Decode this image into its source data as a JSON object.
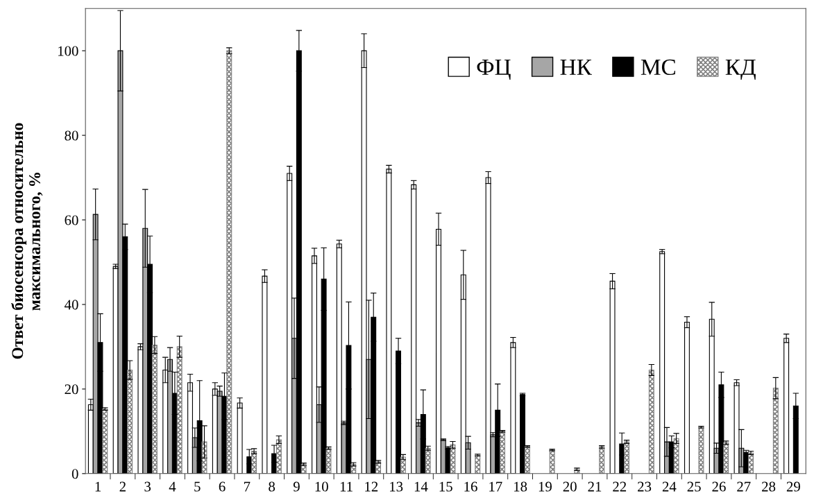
{
  "chart_data": {
    "type": "bar",
    "ylabel": "Ответ биосенсора относительно\nмаксимального, %",
    "categories": [
      "1",
      "2",
      "3",
      "4",
      "5",
      "6",
      "7",
      "8",
      "9",
      "10",
      "11",
      "12",
      "13",
      "14",
      "15",
      "16",
      "17",
      "18",
      "19",
      "20",
      "21",
      "22",
      "23",
      "24",
      "25",
      "26",
      "27",
      "28",
      "29"
    ],
    "series": [
      {
        "name": "ФЦ",
        "color": "#ffffff",
        "values": [
          16.3,
          49,
          30,
          24.5,
          21.5,
          20,
          16.7,
          46.7,
          71,
          51.5,
          54.3,
          100,
          72,
          68.3,
          57.8,
          47,
          70,
          31,
          null,
          null,
          null,
          45.5,
          null,
          52.5,
          35.8,
          36.5,
          21.5,
          null,
          32
        ],
        "errors": [
          1.3,
          0.5,
          0.7,
          3,
          2,
          1.5,
          1.2,
          1.5,
          1.7,
          1.8,
          0.9,
          4,
          0.9,
          1,
          3.8,
          5.8,
          1.4,
          1.2,
          null,
          null,
          null,
          1.8,
          null,
          0.5,
          1.3,
          4,
          0.7,
          null,
          1
        ]
      },
      {
        "name": "НК",
        "color": "#a6a6a6",
        "values": [
          61.3,
          100,
          58,
          27,
          8.5,
          19.5,
          null,
          null,
          32,
          16.3,
          12,
          27,
          null,
          12,
          8,
          7.3,
          9.2,
          null,
          null,
          null,
          null,
          null,
          null,
          7.5,
          null,
          6,
          6,
          null,
          null
        ],
        "errors": [
          6,
          9.5,
          9.2,
          2.8,
          2.3,
          1.2,
          null,
          null,
          9.5,
          4.2,
          0.4,
          14,
          null,
          0.8,
          0.2,
          1.5,
          0.5,
          null,
          null,
          null,
          null,
          null,
          null,
          3.4,
          null,
          1.2,
          4.4,
          null,
          null
        ]
      },
      {
        "name": "МС",
        "color": "#000000",
        "values": [
          31,
          56,
          49.5,
          19,
          12.5,
          18.3,
          4,
          4.7,
          100,
          46,
          30.3,
          37,
          29,
          14,
          6.1,
          null,
          15,
          18.7,
          null,
          null,
          null,
          7,
          null,
          7.5,
          null,
          21,
          5,
          null,
          16
        ],
        "errors": [
          6.8,
          3,
          6.7,
          5,
          9.5,
          5.5,
          1.7,
          2,
          4.8,
          7.4,
          10.3,
          5.7,
          3,
          5.8,
          0.3,
          null,
          6.2,
          0.3,
          null,
          null,
          null,
          2.6,
          null,
          1.4,
          null,
          3,
          0.5,
          null,
          3
        ]
      },
      {
        "name": "КД",
        "color": "#7f7f7f",
        "values": [
          15.3,
          24.5,
          30.4,
          30,
          7.5,
          100,
          5.3,
          8,
          2.2,
          6,
          2.2,
          2.8,
          3.9,
          6,
          6.8,
          4.4,
          10,
          6.4,
          5.6,
          1,
          6.3,
          7.5,
          24.5,
          8.3,
          11,
          7.3,
          4.9,
          20.2,
          null
        ],
        "errors": [
          0.3,
          2.2,
          2,
          2.5,
          3.8,
          0.7,
          0.6,
          0.9,
          0.3,
          0.3,
          0.4,
          0.3,
          0.6,
          0.5,
          0.8,
          0.2,
          0.2,
          0.2,
          0.2,
          0.3,
          0.3,
          0.4,
          1.3,
          1.2,
          0.2,
          0.4,
          0.4,
          2.5,
          null
        ]
      }
    ],
    "ylim": [
      0,
      110
    ],
    "yticks": [
      0,
      20,
      40,
      60,
      80,
      100
    ],
    "grid": false,
    "legend": "top right"
  }
}
